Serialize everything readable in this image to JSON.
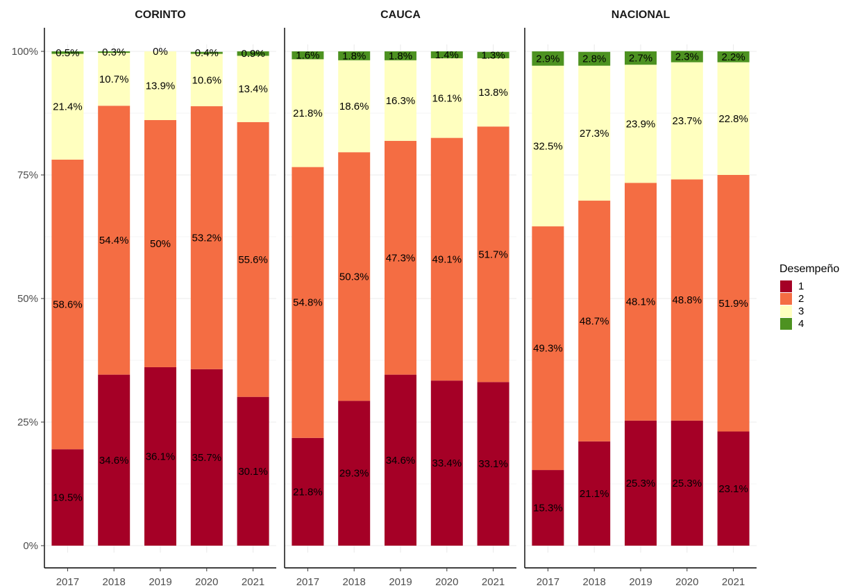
{
  "chart_data": {
    "type": "bar",
    "stacked": true,
    "facets": [
      "CORINTO",
      "CAUCA",
      "NACIONAL"
    ],
    "categories": [
      "2017",
      "2018",
      "2019",
      "2020",
      "2021"
    ],
    "y_ticks": [
      "0%",
      "25%",
      "50%",
      "75%",
      "100%"
    ],
    "ylim": [
      0,
      100
    ],
    "grid": true,
    "legend": {
      "title": "Desempeño",
      "position": "right",
      "levels": [
        {
          "name": "1",
          "color": "#A50026"
        },
        {
          "name": "2",
          "color": "#F46D43"
        },
        {
          "name": "3",
          "color": "#FFFFBF"
        },
        {
          "name": "4",
          "color": "#4D9221"
        }
      ]
    },
    "panels": [
      {
        "facet": "CORINTO",
        "series": [
          {
            "name": "1",
            "values": [
              19.5,
              34.6,
              36.1,
              35.7,
              30.1
            ],
            "labels": [
              "19.5%",
              "34.6%",
              "36.1%",
              "35.7%",
              "30.1%"
            ]
          },
          {
            "name": "2",
            "values": [
              58.6,
              54.4,
              50,
              53.2,
              55.6
            ],
            "labels": [
              "58.6%",
              "54.4%",
              "50%",
              "53.2%",
              "55.6%"
            ]
          },
          {
            "name": "3",
            "values": [
              21.4,
              10.7,
              13.9,
              10.6,
              13.4
            ],
            "labels": [
              "21.4%",
              "10.7%",
              "13.9%",
              "10.6%",
              "13.4%"
            ]
          },
          {
            "name": "4",
            "values": [
              0.5,
              0.3,
              0,
              0.4,
              0.9
            ],
            "labels": [
              "0.5%",
              "0.3%",
              "0%",
              "0.4%",
              "0.9%"
            ]
          }
        ]
      },
      {
        "facet": "CAUCA",
        "series": [
          {
            "name": "1",
            "values": [
              21.8,
              29.3,
              34.6,
              33.4,
              33.1
            ],
            "labels": [
              "21.8%",
              "29.3%",
              "34.6%",
              "33.4%",
              "33.1%"
            ]
          },
          {
            "name": "2",
            "values": [
              54.8,
              50.3,
              47.3,
              49.1,
              51.7
            ],
            "labels": [
              "54.8%",
              "50.3%",
              "47.3%",
              "49.1%",
              "51.7%"
            ]
          },
          {
            "name": "3",
            "values": [
              21.8,
              18.6,
              16.3,
              16.1,
              13.8
            ],
            "labels": [
              "21.8%",
              "18.6%",
              "16.3%",
              "16.1%",
              "13.8%"
            ]
          },
          {
            "name": "4",
            "values": [
              1.6,
              1.8,
              1.8,
              1.4,
              1.3
            ],
            "labels": [
              "1.6%",
              "1.8%",
              "1.8%",
              "1.4%",
              "1.3%"
            ]
          }
        ]
      },
      {
        "facet": "NACIONAL",
        "series": [
          {
            "name": "1",
            "values": [
              15.3,
              21.1,
              25.3,
              25.3,
              23.1
            ],
            "labels": [
              "15.3%",
              "21.1%",
              "25.3%",
              "25.3%",
              "23.1%"
            ]
          },
          {
            "name": "2",
            "values": [
              49.3,
              48.7,
              48.1,
              48.8,
              51.9
            ],
            "labels": [
              "49.3%",
              "48.7%",
              "48.1%",
              "48.8%",
              "51.9%"
            ]
          },
          {
            "name": "3",
            "values": [
              32.5,
              27.3,
              23.9,
              23.7,
              22.8
            ],
            "labels": [
              "32.5%",
              "27.3%",
              "23.9%",
              "23.7%",
              "22.8%"
            ]
          },
          {
            "name": "4",
            "values": [
              2.9,
              2.8,
              2.7,
              2.3,
              2.2
            ],
            "labels": [
              "2.9%",
              "2.8%",
              "2.7%",
              "2.3%",
              "2.2%"
            ]
          }
        ]
      }
    ]
  }
}
